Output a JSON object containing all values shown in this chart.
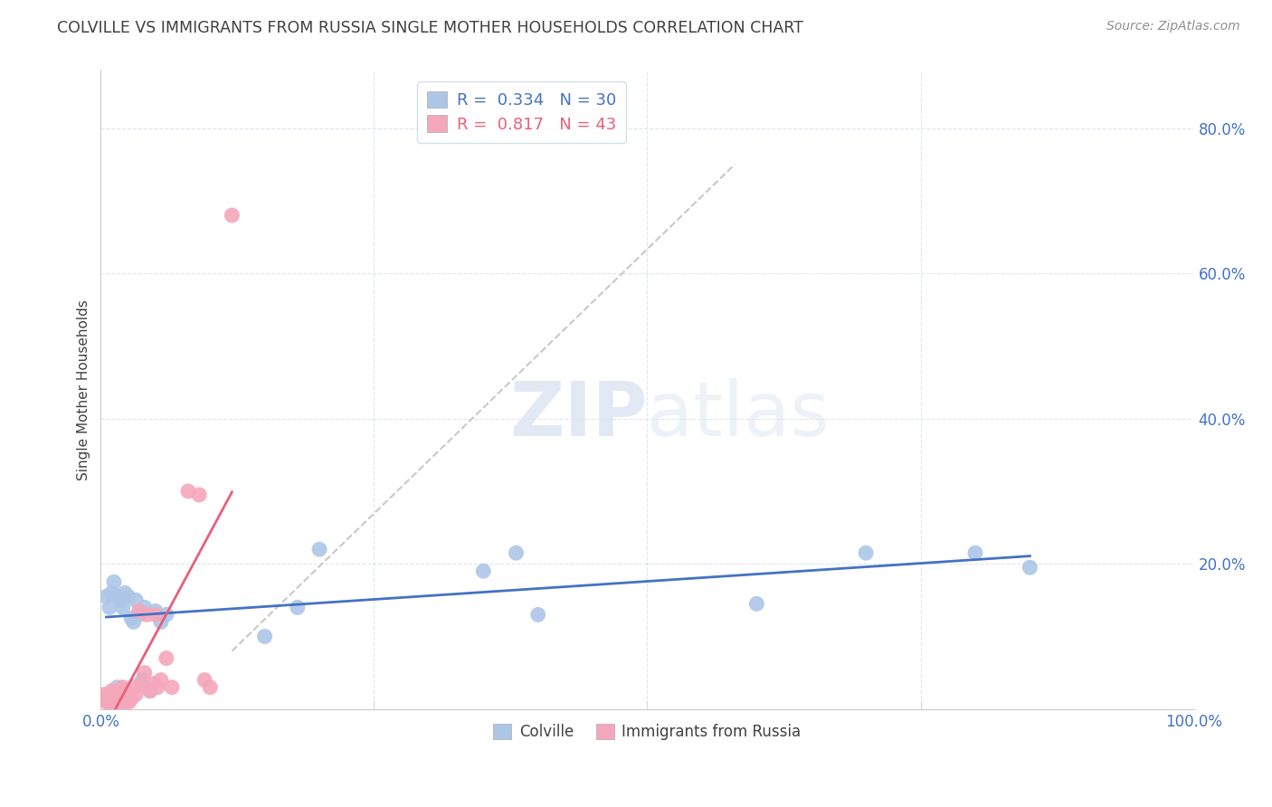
{
  "title": "COLVILLE VS IMMIGRANTS FROM RUSSIA SINGLE MOTHER HOUSEHOLDS CORRELATION CHART",
  "source": "Source: ZipAtlas.com",
  "ylabel_label": "Single Mother Households",
  "watermark_zip": "ZIP",
  "watermark_atlas": "atlas",
  "xlim": [
    0.0,
    1.0
  ],
  "ylim": [
    0.0,
    0.88
  ],
  "xticks": [
    0.0,
    0.25,
    0.5,
    0.75,
    1.0
  ],
  "xticklabels": [
    "0.0%",
    "",
    "",
    "",
    "100.0%"
  ],
  "yticks": [
    0.0,
    0.2,
    0.4,
    0.6,
    0.8
  ],
  "yticklabels": [
    "",
    "20.0%",
    "40.0%",
    "60.0%",
    "80.0%"
  ],
  "colville_color": "#adc6e8",
  "russia_color": "#f4a7bb",
  "colville_line_color": "#4472c4",
  "russia_line_color": "#e8607a",
  "trendline_dashed_color": "#c8c8c8",
  "R_colville": "0.334",
  "N_colville": "30",
  "R_russia": "0.817",
  "N_russia": "43",
  "colville_scatter_x": [
    0.005,
    0.008,
    0.01,
    0.012,
    0.015,
    0.015,
    0.018,
    0.02,
    0.022,
    0.025,
    0.028,
    0.03,
    0.032,
    0.035,
    0.038,
    0.04,
    0.045,
    0.05,
    0.055,
    0.06,
    0.15,
    0.18,
    0.2,
    0.35,
    0.38,
    0.4,
    0.6,
    0.7,
    0.8,
    0.85
  ],
  "colville_scatter_y": [
    0.155,
    0.14,
    0.16,
    0.175,
    0.03,
    0.155,
    0.15,
    0.14,
    0.16,
    0.155,
    0.125,
    0.12,
    0.15,
    0.13,
    0.04,
    0.14,
    0.025,
    0.135,
    0.12,
    0.13,
    0.1,
    0.14,
    0.22,
    0.19,
    0.215,
    0.13,
    0.145,
    0.215,
    0.215,
    0.195
  ],
  "russia_scatter_x": [
    0.003,
    0.005,
    0.006,
    0.007,
    0.008,
    0.009,
    0.01,
    0.01,
    0.012,
    0.013,
    0.014,
    0.015,
    0.015,
    0.016,
    0.018,
    0.019,
    0.02,
    0.02,
    0.021,
    0.022,
    0.023,
    0.025,
    0.026,
    0.027,
    0.028,
    0.03,
    0.032,
    0.035,
    0.038,
    0.04,
    0.042,
    0.045,
    0.048,
    0.05,
    0.052,
    0.055,
    0.06,
    0.065,
    0.08,
    0.09,
    0.095,
    0.1,
    0.12
  ],
  "russia_scatter_y": [
    0.02,
    0.01,
    0.015,
    0.01,
    0.015,
    0.02,
    0.01,
    0.025,
    0.015,
    0.01,
    0.02,
    0.01,
    0.025,
    0.015,
    0.02,
    0.01,
    0.015,
    0.03,
    0.015,
    0.01,
    0.025,
    0.015,
    0.01,
    0.02,
    0.015,
    0.03,
    0.02,
    0.135,
    0.035,
    0.05,
    0.13,
    0.025,
    0.035,
    0.13,
    0.03,
    0.04,
    0.07,
    0.03,
    0.3,
    0.295,
    0.04,
    0.03,
    0.68
  ],
  "background_color": "#ffffff",
  "grid_color": "#dce6f0",
  "title_color": "#404040",
  "source_color": "#909090",
  "tick_label_color": "#4472c4",
  "legend_edge_color": "#c8d8e8",
  "colville_label": "Colville",
  "russia_label": "Immigrants from Russia"
}
